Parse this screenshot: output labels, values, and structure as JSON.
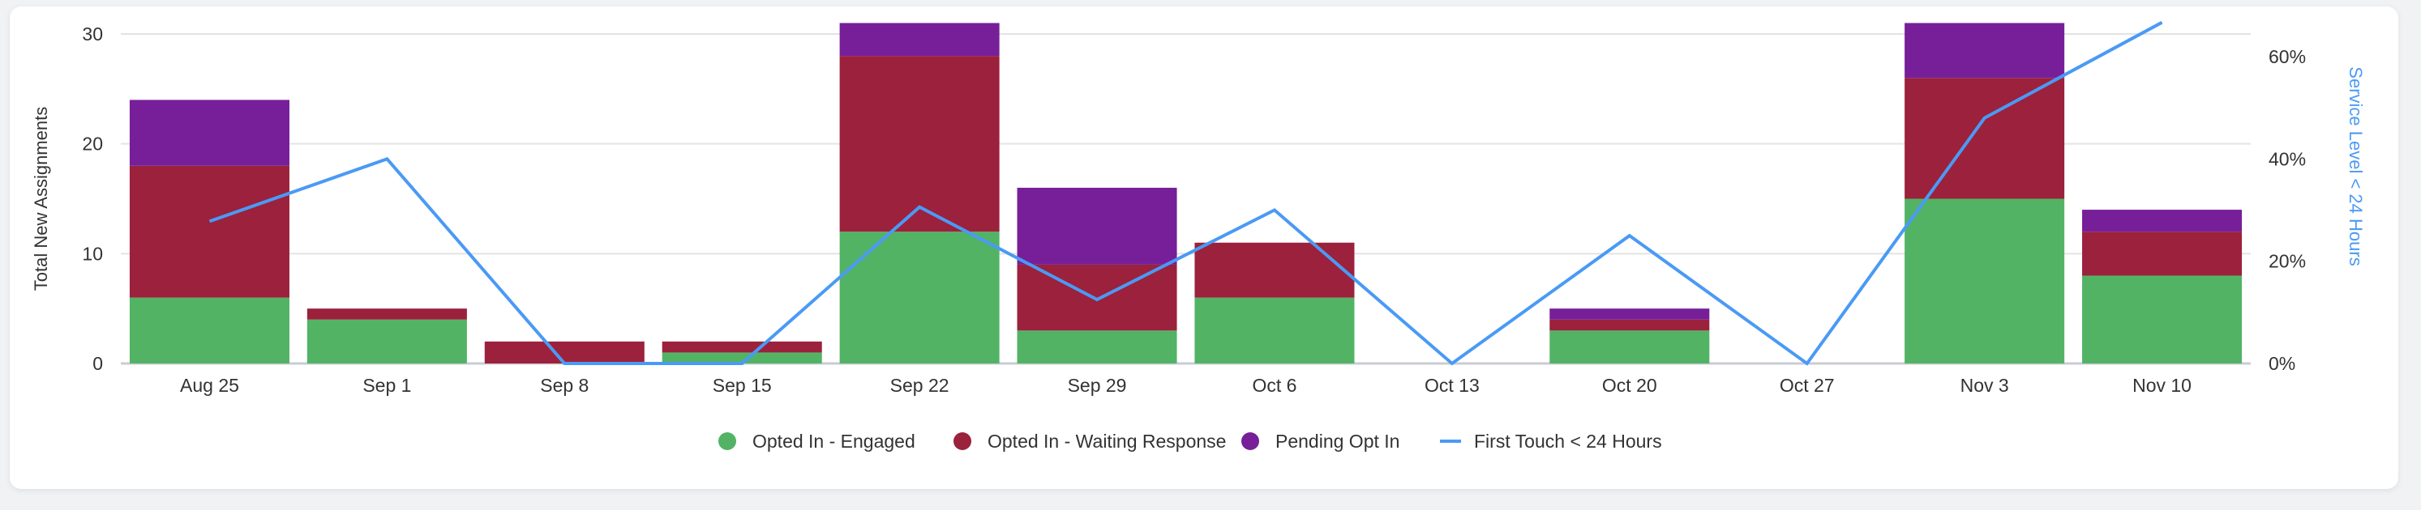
{
  "chart_data": {
    "type": "bar",
    "stacked": true,
    "categories": [
      "Aug 25",
      "Sep 1",
      "Sep 8",
      "Sep 15",
      "Sep 22",
      "Sep 29",
      "Oct 6",
      "Oct 13",
      "Oct 20",
      "Oct 27",
      "Nov 3",
      "Nov 10"
    ],
    "series": [
      {
        "name": "Opted In - Engaged",
        "type": "bar",
        "axis": "left",
        "color": "#52b365",
        "values": [
          6,
          4,
          0,
          1,
          12,
          3,
          6,
          0,
          3,
          0,
          15,
          8
        ]
      },
      {
        "name": "Opted In - Waiting Response",
        "type": "bar",
        "axis": "left",
        "color": "#9c213c",
        "values": [
          12,
          1,
          2,
          1,
          16,
          6,
          5,
          0,
          1,
          0,
          11,
          4
        ]
      },
      {
        "name": "Pending Opt In",
        "type": "bar",
        "axis": "left",
        "color": "#771f99",
        "values": [
          6,
          0,
          0,
          0,
          3,
          7,
          0,
          0,
          1,
          0,
          5,
          2
        ]
      },
      {
        "name": "First Touch < 24 Hours",
        "type": "line",
        "axis": "right",
        "color": "#4a9af5",
        "values": [
          27.8,
          40,
          0,
          0,
          30.6,
          12.5,
          30,
          0,
          25,
          0,
          48,
          66.7
        ]
      }
    ],
    "ylabel": "Total New Assignments",
    "y2label": "Service Level < 24 Hours",
    "ylim": [
      0,
      30
    ],
    "yticks": [
      "0",
      "10",
      "20",
      "30"
    ],
    "y2lim": [
      0,
      64
    ],
    "y2ticks": [
      "0%",
      "20%",
      "40%",
      "60%"
    ],
    "grid": true,
    "legend_position": "bottom"
  }
}
